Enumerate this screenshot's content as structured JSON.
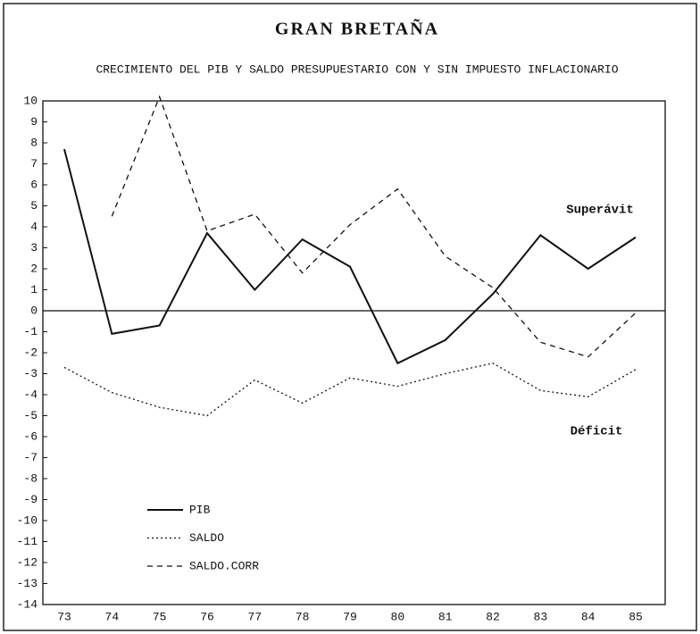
{
  "chart_data": {
    "type": "line",
    "title": "GRAN BRETAÑA",
    "subtitle": "CRECIMIENTO DEL PIB Y SALDO PRESUPUESTARIO CON Y SIN IMPUESTO INFLACIONARIO",
    "categories": [
      "73",
      "74",
      "75",
      "76",
      "77",
      "78",
      "79",
      "80",
      "81",
      "82",
      "83",
      "84",
      "85"
    ],
    "ylim": [
      -14,
      10
    ],
    "yticks": [
      10,
      9,
      8,
      7,
      6,
      5,
      4,
      3,
      2,
      1,
      0,
      -1,
      -2,
      -3,
      -4,
      -5,
      -6,
      -7,
      -8,
      -9,
      -10,
      -11,
      -12,
      -13,
      -14
    ],
    "series": [
      {
        "name": "PIB",
        "color": "#111111",
        "style": "solid",
        "values": [
          7.7,
          -1.1,
          -0.7,
          3.7,
          1.0,
          3.4,
          2.1,
          -2.5,
          -1.4,
          0.8,
          3.6,
          2.0,
          3.5
        ]
      },
      {
        "name": "SALDO",
        "color": "#111111",
        "style": "dotted",
        "values": [
          -2.7,
          -3.9,
          -4.6,
          -5.0,
          -3.3,
          -4.4,
          -3.2,
          -3.6,
          -3.0,
          -2.5,
          -3.8,
          -4.1,
          -2.8
        ]
      },
      {
        "name": "SALDO.CORR",
        "color": "#111111",
        "style": "dashed",
        "values": [
          null,
          4.5,
          10.2,
          3.8,
          4.6,
          1.8,
          4.1,
          5.8,
          2.6,
          1.1,
          -1.5,
          -2.2,
          -0.1
        ]
      }
    ],
    "annotations": [
      "Superávit",
      "Déficit"
    ]
  }
}
